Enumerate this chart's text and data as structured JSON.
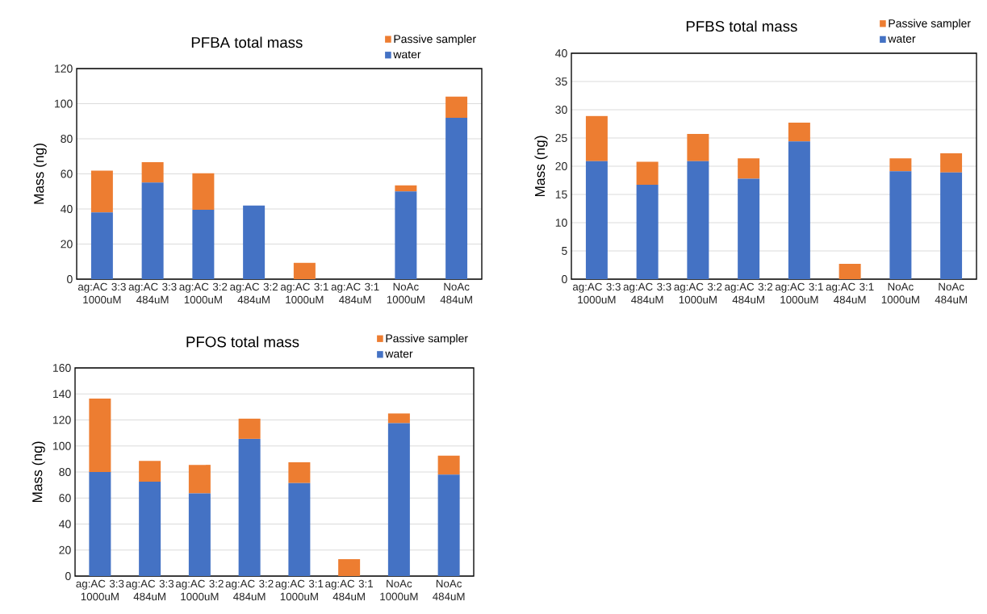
{
  "chart_data": [
    {
      "type": "bar",
      "stacked": true,
      "title": "PFBA total mass",
      "ylabel": "Mass (ng)",
      "categories": [
        "ag:AC 3:3 1000uM",
        "ag:AC 3:3 484uM",
        "ag:AC 3:2 1000uM",
        "ag:AC 3:2 484uM",
        "ag:AC 3:1 1000uM",
        "ag:AC 3:1 484uM",
        "NoAc 1000uM",
        "NoAc 484uM"
      ],
      "series": [
        {
          "name": "water",
          "color": "#4472c4",
          "values": [
            38,
            55,
            39.5,
            42,
            0,
            0,
            50,
            92
          ]
        },
        {
          "name": "Passive sampler",
          "color": "#ed7d31",
          "values": [
            23.8,
            11.7,
            20.8,
            0,
            9.3,
            0,
            3.5,
            12
          ]
        }
      ],
      "ylim": [
        0,
        120
      ],
      "yticks": [
        0,
        20,
        40,
        60,
        80,
        100,
        120
      ],
      "grid": "y",
      "legend": "top right"
    },
    {
      "type": "bar",
      "stacked": true,
      "title": "PFBS total mass",
      "ylabel": "Mass (ng)",
      "categories": [
        "ag:AC 3:3 1000uM",
        "ag:AC 3:3 484uM",
        "ag:AC 3:2 1000uM",
        "ag:AC 3:2 484uM",
        "ag:AC 3:1 1000uM",
        "ag:AC 3:1 484uM",
        "NoAc 1000uM",
        "NoAc 484uM"
      ],
      "series": [
        {
          "name": "water",
          "color": "#4472c4",
          "values": [
            20.9,
            16.7,
            20.9,
            17.8,
            24.4,
            0,
            19.1,
            18.9
          ]
        },
        {
          "name": "Passive sampler",
          "color": "#ed7d31",
          "values": [
            8.0,
            4.1,
            4.8,
            3.6,
            3.3,
            2.7,
            2.3,
            3.4
          ]
        }
      ],
      "ylim": [
        0,
        40
      ],
      "yticks": [
        0,
        5,
        10,
        15,
        20,
        25,
        30,
        35,
        40
      ],
      "grid": "y",
      "legend": "top right"
    },
    {
      "type": "bar",
      "stacked": true,
      "title": "PFOS total mass",
      "ylabel": "Mass (ng)",
      "categories": [
        "ag:AC 3:3 1000uM",
        "ag:AC 3:3 484uM",
        "ag:AC 3:2 1000uM",
        "ag:AC 3:2 484uM",
        "ag:AC 3:1 1000uM",
        "ag:AC 3:1 484uM",
        "NoAc 1000uM",
        "NoAc 484uM"
      ],
      "series": [
        {
          "name": "water",
          "color": "#4472c4",
          "values": [
            80,
            72.5,
            63.5,
            105.5,
            71.5,
            0,
            117.5,
            78
          ]
        },
        {
          "name": "Passive sampler",
          "color": "#ed7d31",
          "values": [
            56.5,
            16,
            22,
            15.5,
            16,
            13,
            7.5,
            14.5
          ]
        }
      ],
      "ylim": [
        0,
        160
      ],
      "yticks": [
        0,
        20,
        40,
        60,
        80,
        100,
        120,
        140,
        160
      ],
      "grid": "y",
      "legend": "top right"
    }
  ]
}
